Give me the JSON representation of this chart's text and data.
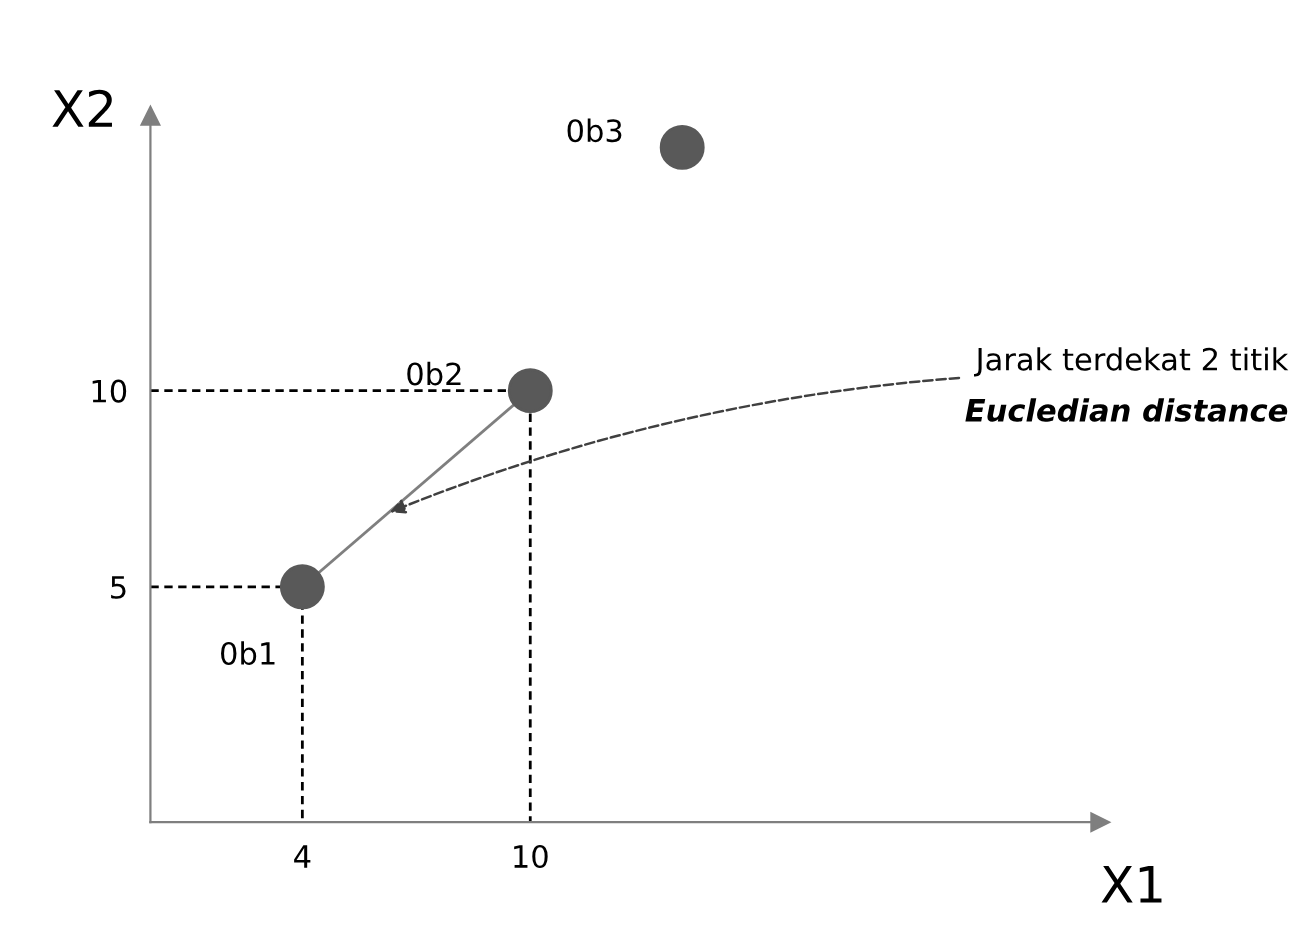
{
  "chart_data": {
    "type": "scatter",
    "xlabel": "X1",
    "ylabel": "X2",
    "xlim": [
      0,
      25
    ],
    "ylim": [
      -1,
      17
    ],
    "xticks": [
      4,
      10
    ],
    "yticks": [
      5,
      10
    ],
    "grid": false,
    "series": [
      {
        "type": "line",
        "x": [
          0,
          4,
          4
        ],
        "values": [
          5,
          5,
          -1
        ],
        "color": "#000000",
        "line_style": "dashed",
        "marker": "none"
      },
      {
        "type": "line",
        "x": [
          0,
          10,
          10
        ],
        "values": [
          10,
          10,
          -1
        ],
        "color": "#000000",
        "line_style": "dashed",
        "marker": "none"
      },
      {
        "type": "line",
        "x": [
          4,
          10
        ],
        "values": [
          5,
          10
        ],
        "color": "#7f7f7f",
        "line_style": "solid",
        "marker": "none"
      },
      {
        "x": [
          4,
          10,
          14
        ],
        "values": [
          5,
          10,
          16.2
        ],
        "color": "#595959",
        "marker": "circle"
      }
    ],
    "annotations": [
      {
        "text": "0b1",
        "x": 4,
        "y": 5
      },
      {
        "text": "0b2",
        "x": 10,
        "y": 10
      },
      {
        "text": "0b3",
        "x": 14,
        "y": 16.2
      },
      {
        "text": "Jarak terdekat 2 titik",
        "x": 6.3,
        "y": 6.9
      },
      "Eucledian distance"
    ]
  }
}
